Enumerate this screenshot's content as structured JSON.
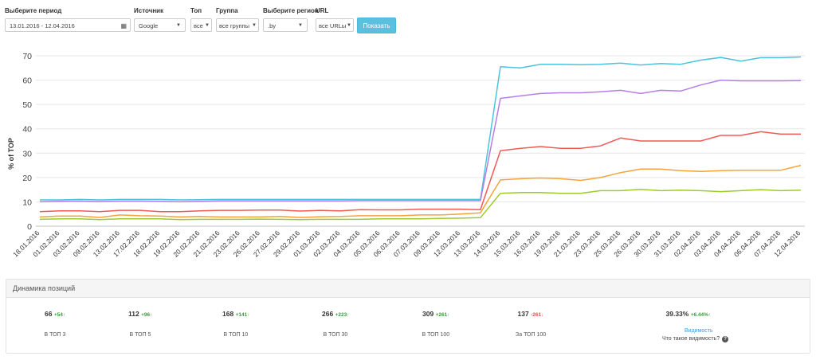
{
  "filters": {
    "period": {
      "label": "Выберите период",
      "value": "13.01.2016 - 12.04.2016"
    },
    "source": {
      "label": "Источник",
      "value": "Google"
    },
    "top": {
      "label": "Топ",
      "value": "все"
    },
    "group": {
      "label": "Группа",
      "value": "все группы"
    },
    "region": {
      "label": "Выберите регион",
      "value": ".by"
    },
    "url": {
      "label": "URL",
      "value": "все URLы"
    },
    "show_button": "Показать"
  },
  "chart_data": {
    "type": "line",
    "ylabel": "% of TOP",
    "xlabel": "",
    "ylim": [
      0,
      70
    ],
    "yticks": [
      0,
      10,
      20,
      30,
      40,
      50,
      60,
      70
    ],
    "grid": "horizontal",
    "categories": [
      "18.01.2016",
      "01.02.2016",
      "03.02.2016",
      "09.02.2016",
      "13.02.2016",
      "17.02.2016",
      "18.02.2016",
      "19.02.2016",
      "20.02.2016",
      "21.02.2016",
      "23.02.2016",
      "26.02.2016",
      "27.02.2016",
      "29.02.2016",
      "01.03.2016",
      "02.03.2016",
      "04.03.2016",
      "05.03.2016",
      "06.03.2016",
      "07.03.2016",
      "09.03.2016",
      "12.03.2016",
      "13.03.2016",
      "14.03.2016",
      "15.03.2016",
      "16.03.2016",
      "19.03.2016",
      "21.03.2016",
      "23.03.2016",
      "25.03.2016",
      "26.03.2016",
      "30.03.2016",
      "31.03.2016",
      "02.04.2016",
      "03.04.2016",
      "04.04.2016",
      "06.04.2016",
      "07.04.2016",
      "12.04.2016"
    ],
    "series": [
      {
        "color": "#4cc3dd",
        "values": [
          10.8,
          10.8,
          11.0,
          10.8,
          11.0,
          11.0,
          11.0,
          10.8,
          10.9,
          11.0,
          11.0,
          11.0,
          11.0,
          11.0,
          11.0,
          11.0,
          11.0,
          11.0,
          11.0,
          11.0,
          11.0,
          11.0,
          11.0,
          65.5,
          65.0,
          66.5,
          66.5,
          66.3,
          66.5,
          67.0,
          66.2,
          66.8,
          66.5,
          68.2,
          69.3,
          67.8,
          69.2,
          69.2,
          69.5
        ]
      },
      {
        "color": "#b57ee8",
        "values": [
          10.0,
          10.2,
          10.3,
          10.1,
          10.3,
          10.3,
          10.2,
          10.0,
          10.2,
          10.4,
          10.4,
          10.4,
          10.4,
          10.4,
          10.4,
          10.4,
          10.5,
          10.5,
          10.5,
          10.5,
          10.5,
          10.5,
          10.5,
          52.5,
          53.5,
          54.5,
          54.8,
          54.8,
          55.2,
          55.8,
          54.5,
          55.8,
          55.5,
          58.0,
          60.0,
          59.7,
          59.7,
          59.7,
          59.8
        ]
      },
      {
        "color": "#f05a55",
        "values": [
          6.0,
          6.3,
          6.3,
          6.0,
          6.5,
          6.5,
          6.0,
          6.0,
          6.3,
          6.5,
          6.5,
          6.6,
          6.6,
          6.2,
          6.5,
          6.3,
          6.8,
          6.7,
          6.7,
          7.0,
          7.0,
          7.0,
          6.8,
          31.0,
          32.0,
          32.7,
          32.0,
          32.0,
          33.0,
          36.2,
          35.0,
          35.0,
          35.0,
          35.0,
          37.3,
          37.3,
          38.8,
          37.8,
          37.8
        ]
      },
      {
        "color": "#f5a33a",
        "values": [
          3.8,
          4.2,
          4.2,
          3.6,
          4.6,
          4.3,
          4.2,
          3.8,
          4.0,
          3.8,
          3.8,
          3.8,
          4.0,
          3.6,
          3.9,
          4.0,
          4.3,
          4.3,
          4.3,
          4.6,
          4.6,
          5.0,
          5.5,
          19.0,
          19.5,
          19.8,
          19.5,
          18.8,
          20.0,
          22.0,
          23.5,
          23.5,
          22.8,
          22.5,
          22.8,
          23.0,
          23.0,
          23.0,
          25.0
        ]
      },
      {
        "color": "#9ccc2a",
        "values": [
          2.8,
          3.0,
          3.0,
          2.7,
          3.0,
          3.0,
          3.0,
          2.7,
          2.8,
          2.8,
          2.8,
          2.9,
          2.8,
          2.7,
          2.8,
          2.8,
          2.8,
          3.0,
          3.0,
          3.0,
          3.2,
          3.3,
          3.5,
          13.5,
          13.8,
          13.8,
          13.5,
          13.5,
          14.6,
          14.6,
          15.1,
          14.6,
          14.8,
          14.6,
          14.2,
          14.6,
          15.0,
          14.6,
          14.8
        ]
      }
    ]
  },
  "dynamics": {
    "title": "Динамика позиций",
    "stats": [
      {
        "value": "66",
        "delta": "+54",
        "arrow": "↑",
        "dir": "up",
        "label": "В ТОП 3"
      },
      {
        "value": "112",
        "delta": "+96",
        "arrow": "↑",
        "dir": "up",
        "label": "В ТОП 5"
      },
      {
        "value": "168",
        "delta": "+141",
        "arrow": "↑",
        "dir": "up",
        "label": "В ТОП 10"
      },
      {
        "value": "266",
        "delta": "+223",
        "arrow": "↑",
        "dir": "up",
        "label": "В ТОП 30"
      },
      {
        "value": "309",
        "delta": "+261",
        "arrow": "↑",
        "dir": "up",
        "label": "В ТОП 100"
      },
      {
        "value": "137",
        "delta": "-261",
        "arrow": "↓",
        "dir": "down",
        "label": "За ТОП 100"
      },
      {
        "value": "39.33%",
        "delta": "+6.44%",
        "arrow": "↑",
        "dir": "up",
        "label": ""
      }
    ],
    "visibility_link": "Видимость",
    "visibility_help": "Что такое видимость?",
    "help_icon": "question-circle-icon"
  }
}
